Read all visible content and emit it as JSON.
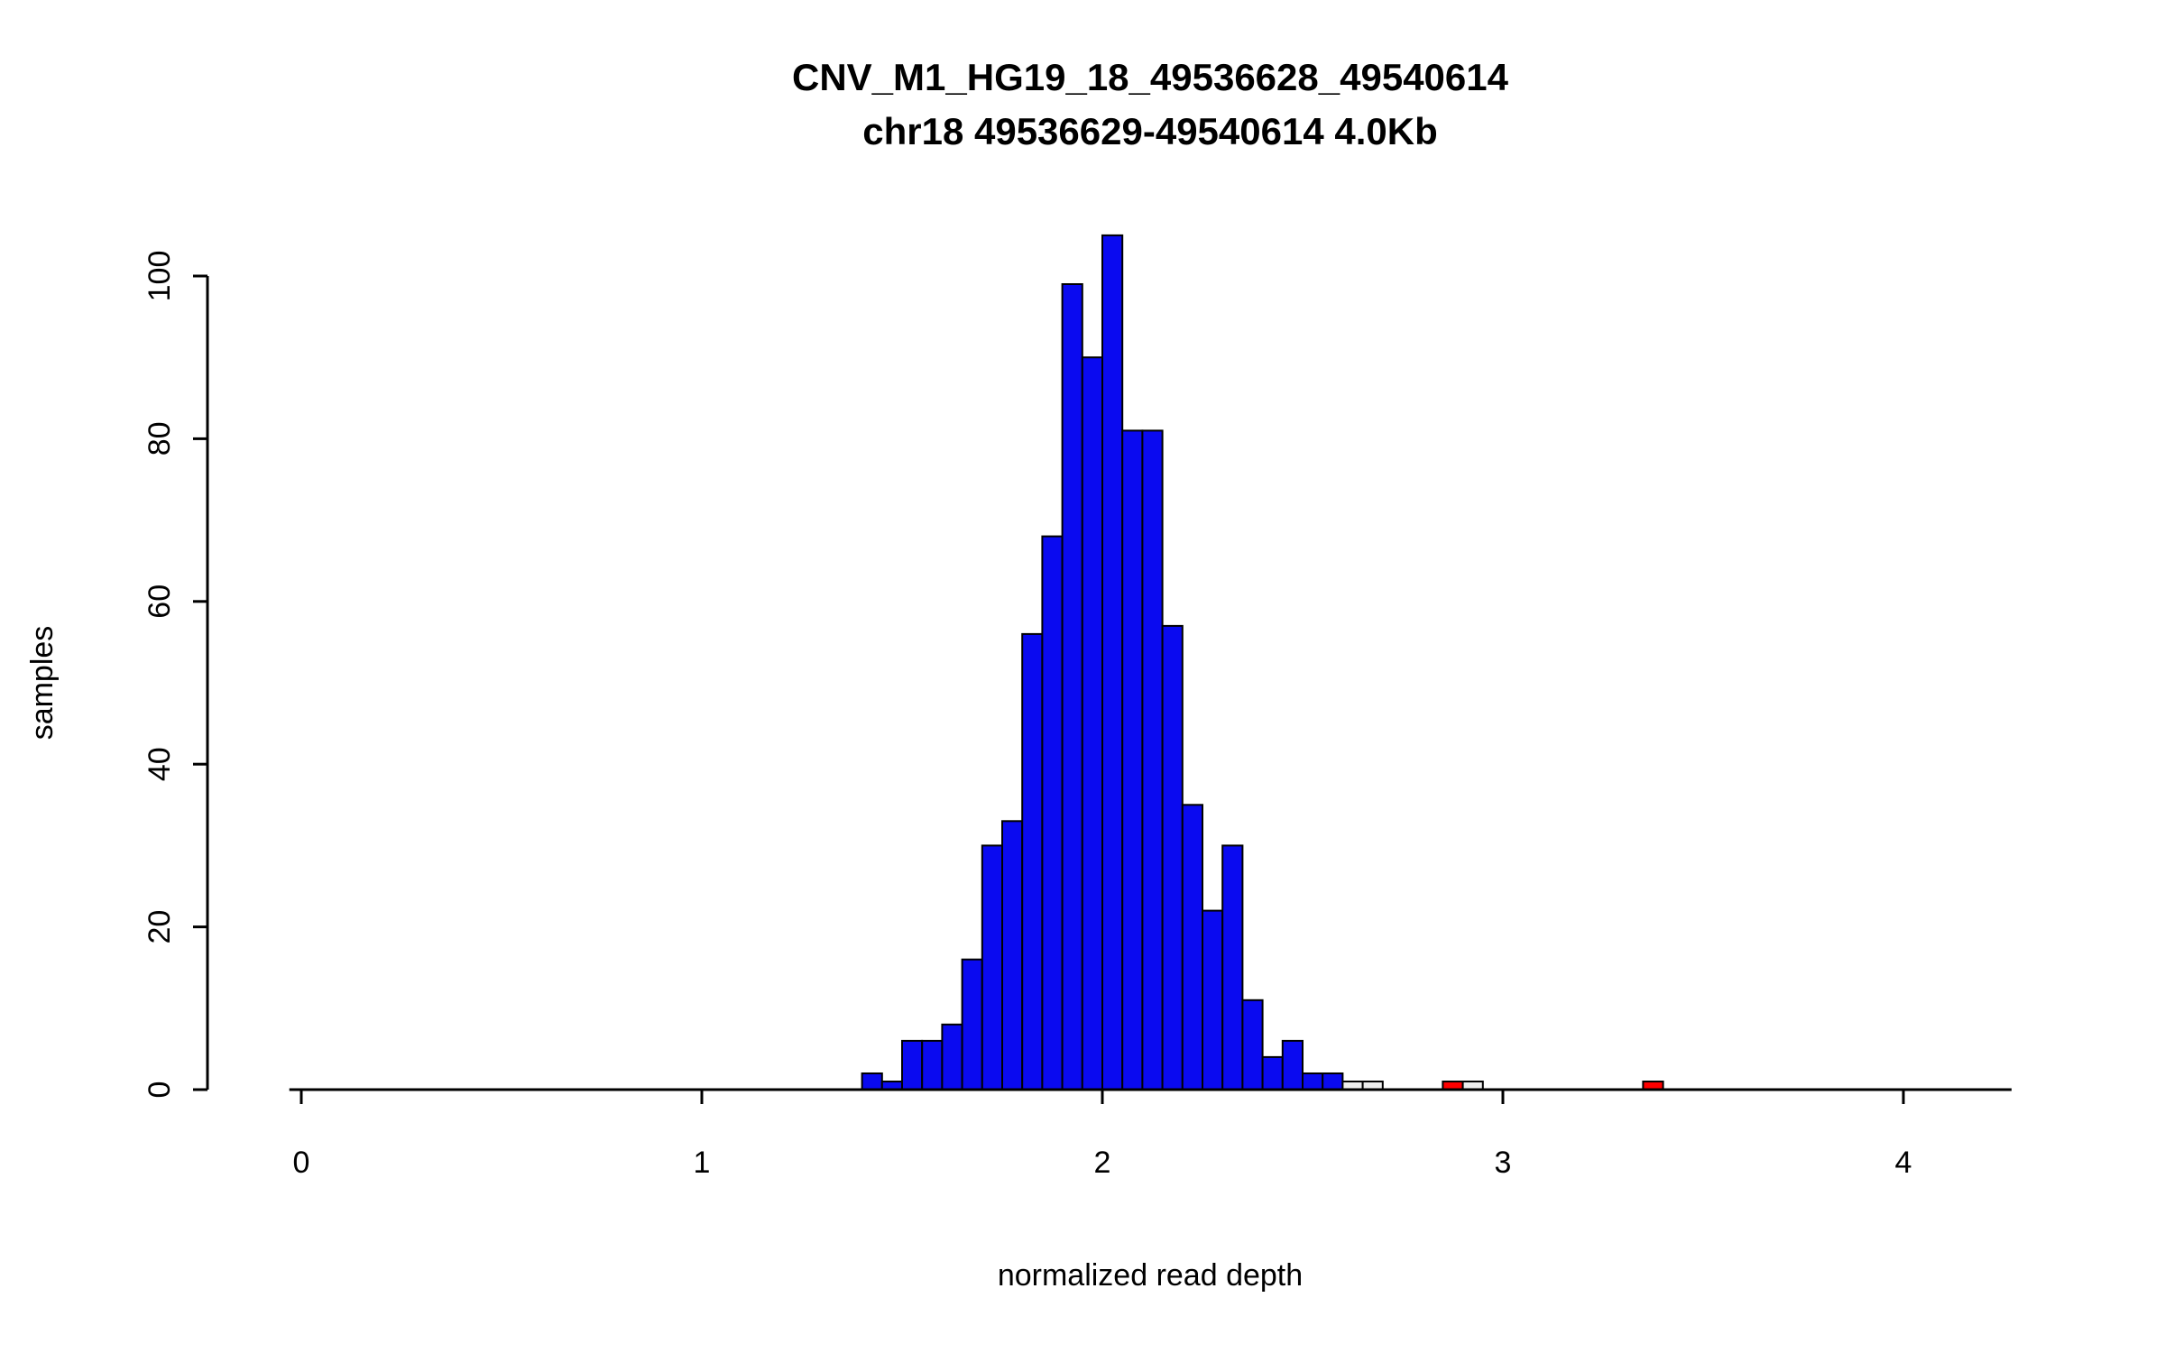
{
  "chart_data": {
    "type": "bar",
    "subtype": "histogram",
    "title": "CNV_M1_HG19_18_49536628_49540614",
    "subtitle": "chr18 49536629-49540614 4.0Kb",
    "xlabel": "normalized read depth",
    "ylabel": "samples",
    "xlim": [
      -0.03,
      4.27
    ],
    "ylim": [
      0,
      105
    ],
    "x_ticks": [
      0,
      1,
      2,
      3,
      4
    ],
    "y_ticks": [
      0,
      20,
      40,
      60,
      80,
      100
    ],
    "grid": "off",
    "legend": "none",
    "bin_width": 0.05,
    "bars": [
      {
        "x": 1.4,
        "count": 2,
        "color": "blue"
      },
      {
        "x": 1.45,
        "count": 1,
        "color": "blue"
      },
      {
        "x": 1.5,
        "count": 6,
        "color": "blue"
      },
      {
        "x": 1.55,
        "count": 6,
        "color": "blue"
      },
      {
        "x": 1.6,
        "count": 8,
        "color": "blue"
      },
      {
        "x": 1.65,
        "count": 16,
        "color": "blue"
      },
      {
        "x": 1.7,
        "count": 30,
        "color": "blue"
      },
      {
        "x": 1.75,
        "count": 33,
        "color": "blue"
      },
      {
        "x": 1.8,
        "count": 56,
        "color": "blue"
      },
      {
        "x": 1.85,
        "count": 68,
        "color": "blue"
      },
      {
        "x": 1.9,
        "count": 99,
        "color": "blue"
      },
      {
        "x": 1.95,
        "count": 90,
        "color": "blue"
      },
      {
        "x": 2.0,
        "count": 105,
        "color": "blue"
      },
      {
        "x": 2.05,
        "count": 81,
        "color": "blue"
      },
      {
        "x": 2.1,
        "count": 81,
        "color": "blue"
      },
      {
        "x": 2.15,
        "count": 57,
        "color": "blue"
      },
      {
        "x": 2.2,
        "count": 35,
        "color": "blue"
      },
      {
        "x": 2.25,
        "count": 22,
        "color": "blue"
      },
      {
        "x": 2.3,
        "count": 30,
        "color": "blue"
      },
      {
        "x": 2.35,
        "count": 11,
        "color": "blue"
      },
      {
        "x": 2.4,
        "count": 4,
        "color": "blue"
      },
      {
        "x": 2.45,
        "count": 6,
        "color": "blue"
      },
      {
        "x": 2.5,
        "count": 2,
        "color": "blue"
      },
      {
        "x": 2.55,
        "count": 2,
        "color": "blue"
      },
      {
        "x": 2.6,
        "count": 1,
        "color": "gray"
      },
      {
        "x": 2.65,
        "count": 1,
        "color": "gray"
      },
      {
        "x": 2.85,
        "count": 1,
        "color": "red"
      },
      {
        "x": 2.9,
        "count": 1,
        "color": "gray"
      },
      {
        "x": 3.35,
        "count": 1,
        "color": "red"
      }
    ],
    "colors": {
      "blue": "#0a0af0",
      "gray": "#ededed",
      "red": "#ff0000",
      "stroke": "#000000"
    }
  }
}
